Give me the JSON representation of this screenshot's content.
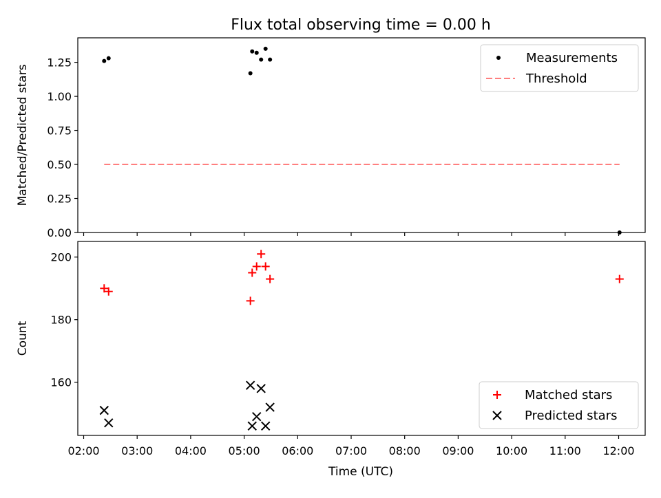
{
  "chart_data": {
    "title": "Flux total observing time = 0.00 h",
    "xlabel": "Time (UTC)",
    "x_tick_labels": [
      "02:00",
      "03:00",
      "04:00",
      "05:00",
      "06:00",
      "07:00",
      "08:00",
      "09:00",
      "10:00",
      "11:00",
      "12:00"
    ],
    "panels": [
      {
        "type": "scatter",
        "ylabel": "Matched/Predicted stars",
        "ylim": [
          0,
          1.43
        ],
        "y_ticks": [
          0,
          0.25,
          0.5,
          0.75,
          1.0,
          1.25
        ],
        "y_tick_labels": [
          "0.00",
          "0.25",
          "0.50",
          "0.75",
          "1.00",
          "1.25"
        ],
        "legend_position": "top-right",
        "series": [
          {
            "name": "Measurements",
            "kind": "scatter",
            "marker": "dot",
            "color": "#000000",
            "x": [
              "02:23",
              "02:28",
              "05:07",
              "05:09",
              "05:14",
              "05:19",
              "05:24",
              "05:29"
            ],
            "y": [
              1.26,
              1.28,
              1.17,
              1.33,
              1.32,
              1.27,
              1.35,
              1.27
            ]
          },
          {
            "name": "Threshold",
            "kind": "dashed-line",
            "color": "#ff7f7f",
            "x": [
              "02:23",
              "12:01"
            ],
            "y": [
              0.5,
              0.5
            ]
          }
        ],
        "extra_points": [
          {
            "x": "12:01",
            "y": 0.0,
            "color": "#000000"
          }
        ]
      },
      {
        "type": "scatter",
        "ylabel": "Count",
        "ylim": [
          143,
          205
        ],
        "y_ticks": [
          160,
          180,
          200
        ],
        "y_tick_labels": [
          "160",
          "180",
          "200"
        ],
        "legend_position": "bottom-right",
        "series": [
          {
            "name": "Matched stars",
            "kind": "scatter",
            "marker": "plus",
            "color": "#ff0000",
            "x": [
              "02:23",
              "02:28",
              "05:07",
              "05:09",
              "05:14",
              "05:19",
              "05:24",
              "05:29",
              "12:01"
            ],
            "y": [
              190,
              189,
              186,
              195,
              197,
              201,
              197,
              193,
              193
            ]
          },
          {
            "name": "Predicted stars",
            "kind": "scatter",
            "marker": "x",
            "color": "#000000",
            "x": [
              "02:23",
              "02:28",
              "05:07",
              "05:09",
              "05:14",
              "05:19",
              "05:24",
              "05:29"
            ],
            "y": [
              151,
              147,
              159,
              146,
              149,
              158,
              146,
              152
            ]
          }
        ]
      }
    ]
  }
}
